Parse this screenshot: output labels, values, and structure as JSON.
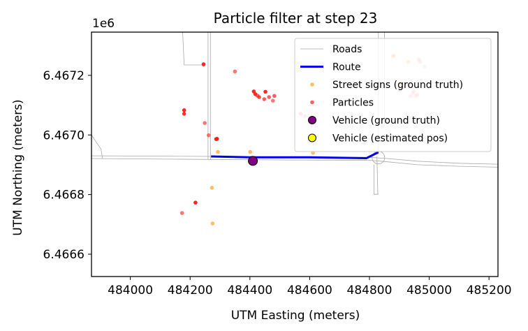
{
  "chart_data": {
    "type": "scatter",
    "title": "Particle filter at step 23",
    "xlabel": "UTM Easting (meters)",
    "ylabel": "UTM Northing (meters)",
    "y_offset_label": "1e6",
    "xlim": [
      483870,
      485230
    ],
    "ylim": [
      6466525,
      6467345
    ],
    "x_ticks": [
      484000,
      484200,
      484400,
      484600,
      484800,
      485000,
      485200
    ],
    "x_tick_labels": [
      "484000",
      "484200",
      "484400",
      "484600",
      "484800",
      "485000",
      "485200"
    ],
    "y_ticks": [
      6466600,
      6466800,
      6467000,
      6467200
    ],
    "y_tick_labels": [
      "6.4666",
      "6.4668",
      "6.4670",
      "6.4672"
    ],
    "grid": false,
    "legend_position": "top-right",
    "legend": [
      {
        "key": "roads",
        "label": "Roads",
        "marker": "line",
        "color": "#a9a9a9"
      },
      {
        "key": "route",
        "label": "Route",
        "marker": "thick-line",
        "color": "#0000ee"
      },
      {
        "key": "signs",
        "label": "Street signs (ground truth)",
        "marker": "dot",
        "color": "#ffb347"
      },
      {
        "key": "particles",
        "label": "Particles",
        "marker": "dot",
        "color": "#ff4444"
      },
      {
        "key": "vehicle_true",
        "label": "Vehicle (ground truth)",
        "marker": "circle",
        "color": "#800080"
      },
      {
        "key": "vehicle_est",
        "label": "Vehicle (estimated pos)",
        "marker": "circle",
        "color": "#ffff00"
      }
    ],
    "roads": [
      [
        [
          483870,
          6466921
        ],
        [
          484260,
          6466918
        ],
        [
          484530,
          6466916
        ],
        [
          484800,
          6466915
        ],
        [
          484860,
          6466910
        ],
        [
          484960,
          6466900
        ],
        [
          485100,
          6466895
        ],
        [
          485230,
          6466892
        ]
      ],
      [
        [
          483870,
          6466930
        ],
        [
          484260,
          6466928
        ],
        [
          484530,
          6466926
        ],
        [
          484800,
          6466925
        ],
        [
          484860,
          6466921
        ],
        [
          484960,
          6466912
        ],
        [
          485100,
          6466905
        ],
        [
          485230,
          6466902
        ]
      ],
      [
        [
          484260,
          6467345
        ],
        [
          484260,
          6466918
        ]
      ],
      [
        [
          484268,
          6467345
        ],
        [
          484268,
          6466918
        ]
      ],
      [
        [
          484175,
          6467345
        ],
        [
          484180,
          6467235
        ],
        [
          484250,
          6467235
        ]
      ],
      [
        [
          483870,
          6467000
        ],
        [
          483902,
          6466952
        ],
        [
          483907,
          6466920
        ]
      ],
      [
        [
          484825,
          6466928
        ],
        [
          484828,
          6466801
        ]
      ],
      [
        [
          484815,
          6466900
        ],
        [
          484815,
          6466801
        ],
        [
          484830,
          6466801
        ]
      ],
      [
        [
          484830,
          6467345
        ],
        [
          484830,
          6467030
        ],
        [
          484830,
          6466940
        ]
      ],
      [
        [
          484850,
          6467345
        ],
        [
          484850,
          6467030
        ]
      ]
    ],
    "route": [
      [
        484270,
        6466928
      ],
      [
        484400,
        6466925
      ],
      [
        484600,
        6466925
      ],
      [
        484790,
        6466922
      ],
      [
        484830,
        6466942
      ]
    ],
    "street_signs": [
      {
        "x": 484293,
        "y": 6466943
      },
      {
        "x": 484401,
        "y": 6466943
      },
      {
        "x": 484611,
        "y": 6466940
      },
      {
        "x": 484273,
        "y": 6466823
      },
      {
        "x": 484275,
        "y": 6466703
      },
      {
        "x": 484880,
        "y": 6467265
      },
      {
        "x": 484905,
        "y": 6467170
      },
      {
        "x": 484930,
        "y": 6467245
      }
    ],
    "particles": [
      {
        "x": 484245,
        "y": 6467237,
        "a": 0.95
      },
      {
        "x": 484350,
        "y": 6467213,
        "a": 0.6
      },
      {
        "x": 484180,
        "y": 6467083,
        "a": 0.95
      },
      {
        "x": 484180,
        "y": 6467071,
        "a": 0.9
      },
      {
        "x": 484249,
        "y": 6467040,
        "a": 0.6
      },
      {
        "x": 484262,
        "y": 6466999,
        "a": 0.6
      },
      {
        "x": 484290,
        "y": 6466987,
        "a": 0.95
      },
      {
        "x": 484287,
        "y": 6466986,
        "a": 0.9
      },
      {
        "x": 484413,
        "y": 6467146,
        "a": 0.95
      },
      {
        "x": 484418,
        "y": 6467137,
        "a": 0.9
      },
      {
        "x": 484425,
        "y": 6467132,
        "a": 0.7
      },
      {
        "x": 484431,
        "y": 6467127,
        "a": 0.8
      },
      {
        "x": 484452,
        "y": 6467145,
        "a": 0.95
      },
      {
        "x": 484448,
        "y": 6467120,
        "a": 0.7
      },
      {
        "x": 484464,
        "y": 6467127,
        "a": 0.7
      },
      {
        "x": 484482,
        "y": 6467131,
        "a": 0.7
      },
      {
        "x": 484477,
        "y": 6467115,
        "a": 0.6
      },
      {
        "x": 484570,
        "y": 6467071,
        "a": 0.5
      },
      {
        "x": 484585,
        "y": 6467063,
        "a": 0.35
      },
      {
        "x": 484218,
        "y": 6466773,
        "a": 0.95
      },
      {
        "x": 484173,
        "y": 6466738,
        "a": 0.6
      },
      {
        "x": 484880,
        "y": 6467266,
        "a": 0.25
      },
      {
        "x": 484965,
        "y": 6467253,
        "a": 0.35
      },
      {
        "x": 484970,
        "y": 6467245,
        "a": 0.3
      },
      {
        "x": 484985,
        "y": 6467230,
        "a": 0.25
      },
      {
        "x": 484899,
        "y": 6467152,
        "a": 0.35
      },
      {
        "x": 484932,
        "y": 6467167,
        "a": 0.3
      },
      {
        "x": 484948,
        "y": 6467146,
        "a": 0.3
      },
      {
        "x": 484960,
        "y": 6467135,
        "a": 0.35
      },
      {
        "x": 484937,
        "y": 6467130,
        "a": 0.3
      },
      {
        "x": 484955,
        "y": 6467130,
        "a": 0.3
      },
      {
        "x": 484945,
        "y": 6467140,
        "a": 0.25
      },
      {
        "x": 484915,
        "y": 6467160,
        "a": 0.25
      }
    ],
    "vehicle_ground_truth": {
      "x": 484410,
      "y": 6466913
    },
    "vehicle_estimated": {
      "x": 484410,
      "y": 6466913
    }
  }
}
